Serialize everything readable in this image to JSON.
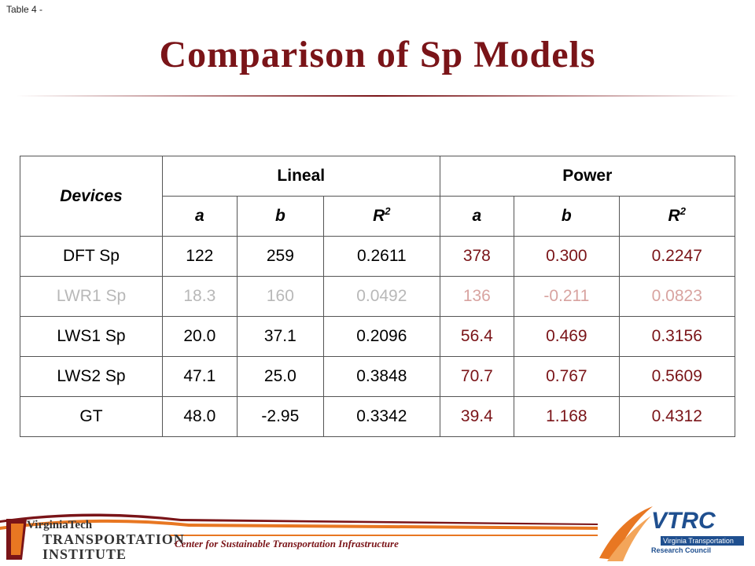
{
  "slide_label": "Table 4 -",
  "title": "Comparison of Sp Models",
  "table": {
    "devices_header": "Devices",
    "group_headers": [
      "Lineal",
      "Power"
    ],
    "sub_headers": [
      {
        "letter": "a",
        "sup": ""
      },
      {
        "letter": "b",
        "sup": ""
      },
      {
        "letter": "R",
        "sup": "2"
      },
      {
        "letter": "a",
        "sup": ""
      },
      {
        "letter": "b",
        "sup": ""
      },
      {
        "letter": "R",
        "sup": "2"
      }
    ],
    "rows": [
      {
        "device": "DFT Sp",
        "values": [
          "122",
          "259",
          "0.2611",
          "378",
          "0.300",
          "0.2247"
        ],
        "muted": false
      },
      {
        "device": "LWR1 Sp",
        "values": [
          "18.3",
          "160",
          "0.0492",
          "136",
          "-0.211",
          "0.0823"
        ],
        "muted": true
      },
      {
        "device": "LWS1 Sp",
        "values": [
          "20.0",
          "37.1",
          "0.2096",
          "56.4",
          "0.469",
          "0.3156"
        ],
        "muted": false
      },
      {
        "device": "LWS2 Sp",
        "values": [
          "47.1",
          "25.0",
          "0.3848",
          "70.7",
          "0.767",
          "0.5609"
        ],
        "muted": false
      },
      {
        "device": "GT",
        "values": [
          "48.0",
          "-2.95",
          "0.3342",
          "39.4",
          "1.168",
          "0.4312"
        ],
        "muted": false
      }
    ]
  },
  "footer": {
    "center_text": "Center for Sustainable Transportation Infrastructure",
    "vt_logo": {
      "line1": "VirginiaTech",
      "line2": "TRANSPORTATION",
      "line3": "INSTITUTE"
    },
    "vtrc_logo": {
      "word": "VTRC",
      "sub1": "Virginia Transportation",
      "sub2": "Research Council"
    }
  },
  "colors": {
    "title": "#7a1418",
    "power_values": "#7a1418",
    "vtrc_blue": "#1f4f8f",
    "footer_orange": "#e87722"
  }
}
